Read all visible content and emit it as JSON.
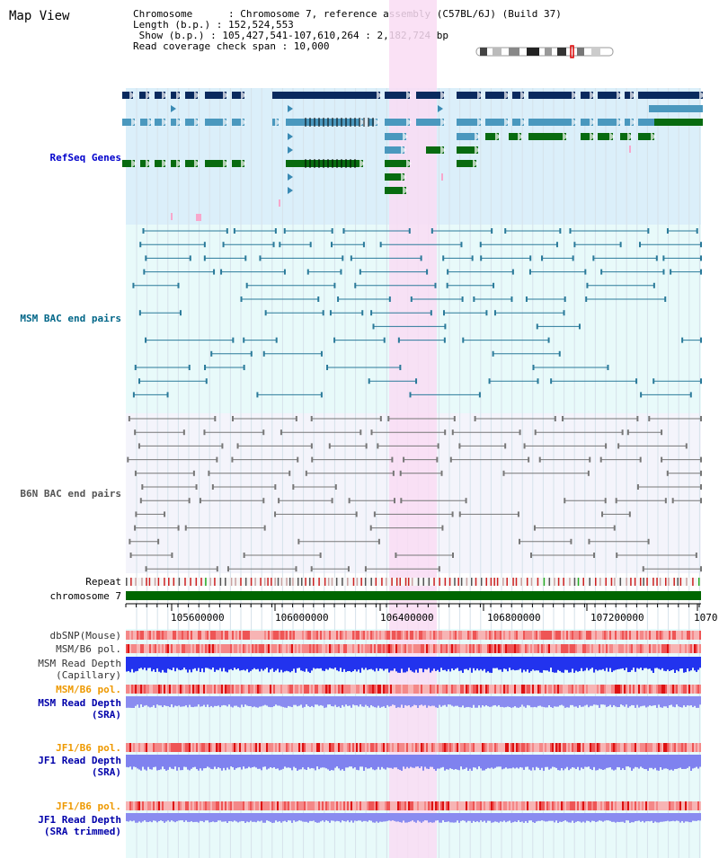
{
  "header": {
    "title": "Map View",
    "info_rows": [
      "Chromosome      : Chromosome 7, reference assembly (C57BL/6J) (Build 37)",
      "Length (b.p.) : 152,524,553",
      " Show (b.p.) : 105,427,541-107,610,264 : 2,182,724 bp",
      "Read coverage check span : 10,000"
    ]
  },
  "tracks": {
    "refseq": "RefSeq Genes",
    "msm_bac": "MSM BAC end pairs",
    "b6n_bac": "B6N BAC end pairs",
    "repeat": "Repeat",
    "chromosome": "chromosome 7",
    "dbsnp": "dbSNP(Mouse)",
    "msm_b6_pol_1": "MSM/B6 pol.",
    "msm_read_depth_cap_1": "MSM Read Depth",
    "msm_read_depth_cap_2": "(Capillary)",
    "msm_b6_pol_2": "MSM/B6 pol.",
    "msm_read_depth_sra_1": "MSM Read Depth",
    "msm_read_depth_sra_2": "(SRA)",
    "jf1_b6_pol_1": "JF1/B6 pol.",
    "jf1_read_depth_sra_1": "JF1 Read Depth",
    "jf1_read_depth_sra_2": "(SRA)",
    "jf1_b6_pol_2": "JF1/B6 pol.",
    "jf1_read_depth_trim_1": "JF1 Read Depth",
    "jf1_read_depth_trim_2": "(SRA trimmed)"
  },
  "axis": {
    "ticks": [
      "105600000",
      "106000000",
      "106400000",
      "106800000",
      "107200000",
      "1070"
    ]
  },
  "colors": {
    "highlight": "#f9dcf3",
    "refseq_bg": "#dbeffa",
    "bac_bg": "#e8fafa",
    "gene_dark": "#0a2a5e",
    "gene_mid": "#4a98be",
    "gene_green": "#086b10",
    "msm_pair": "#2a7a9a",
    "b6n_pair": "#777777",
    "chromosome": "#006600"
  }
}
